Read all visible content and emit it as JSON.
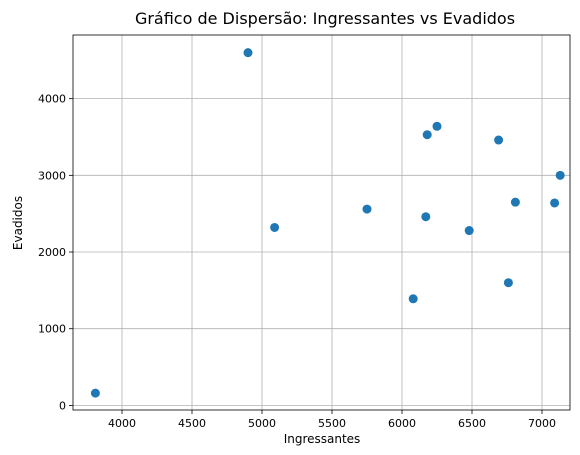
{
  "chart_data": {
    "type": "scatter",
    "title": "Gráfico de Dispersão: Ingressantes vs Evadidos",
    "xlabel": "Ingressantes",
    "ylabel": "Evadidos",
    "xlim": [
      3650,
      7200
    ],
    "ylim": [
      -60,
      4830
    ],
    "xticks": [
      4000,
      4500,
      5000,
      5500,
      6000,
      6500,
      7000
    ],
    "yticks": [
      0,
      1000,
      2000,
      3000,
      4000
    ],
    "grid": true,
    "marker_color": "#1f77b4",
    "points": [
      {
        "x": 3810,
        "y": 160
      },
      {
        "x": 4900,
        "y": 4600
      },
      {
        "x": 5090,
        "y": 2320
      },
      {
        "x": 5750,
        "y": 2560
      },
      {
        "x": 6080,
        "y": 1390
      },
      {
        "x": 6170,
        "y": 2460
      },
      {
        "x": 6180,
        "y": 3530
      },
      {
        "x": 6250,
        "y": 3640
      },
      {
        "x": 6480,
        "y": 2280
      },
      {
        "x": 6690,
        "y": 3460
      },
      {
        "x": 6760,
        "y": 1600
      },
      {
        "x": 6810,
        "y": 2650
      },
      {
        "x": 7090,
        "y": 2640
      },
      {
        "x": 7130,
        "y": 3000
      }
    ]
  }
}
